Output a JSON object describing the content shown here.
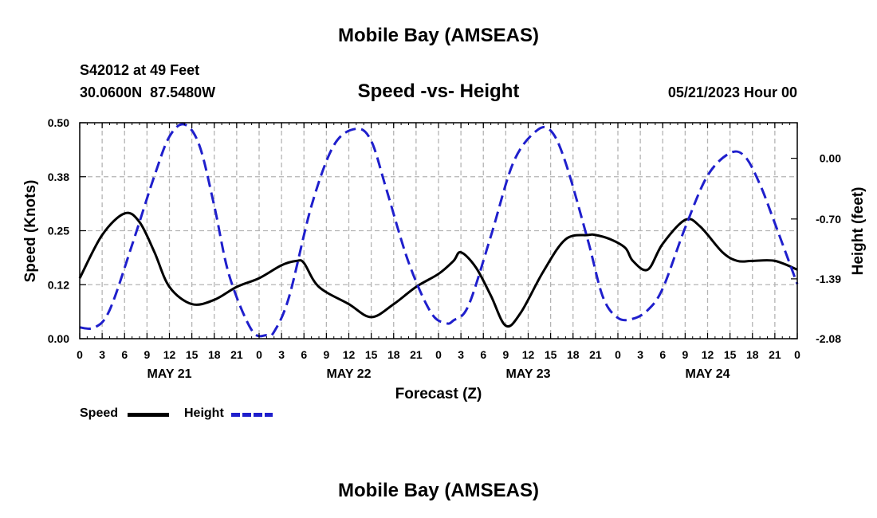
{
  "page": {
    "title": "Mobile Bay (AMSEAS)",
    "station": "S42012 at 49 Feet",
    "coords": "30.0600N  87.5480W",
    "datetime": "05/21/2023 Hour 00",
    "footer_title": "Mobile Bay (AMSEAS)"
  },
  "chart_data": {
    "type": "line",
    "title": "Speed -vs- Height",
    "xlabel": "Forecast (Z)",
    "ylabel_left": "Speed (Knots)",
    "ylabel_right": "Height (feet)",
    "x_unit": "hours from 05/21/2023 00Z",
    "xlim": [
      0,
      96
    ],
    "ylim_left": [
      0,
      0.5
    ],
    "ylim_right": [
      -2.08,
      0.41
    ],
    "grid": true,
    "yticks_left": [
      {
        "value": 0,
        "label": "0.00"
      },
      {
        "value": 0.125,
        "label": "0.12"
      },
      {
        "value": 0.25,
        "label": "0.25"
      },
      {
        "value": 0.375,
        "label": "0.38"
      },
      {
        "value": 0.5,
        "label": "0.50"
      }
    ],
    "yticks_right": [
      {
        "value": -2.08,
        "label": "-2.08"
      },
      {
        "value": -1.39,
        "label": "-1.39"
      },
      {
        "value": -0.7,
        "label": "-0.70"
      },
      {
        "value": 0.0,
        "label": "0.00"
      }
    ],
    "xticks": [
      {
        "x": 0,
        "label": "0"
      },
      {
        "x": 3,
        "label": "3"
      },
      {
        "x": 6,
        "label": "6"
      },
      {
        "x": 9,
        "label": "9"
      },
      {
        "x": 12,
        "label": "12"
      },
      {
        "x": 15,
        "label": "15"
      },
      {
        "x": 18,
        "label": "18"
      },
      {
        "x": 21,
        "label": "21"
      },
      {
        "x": 24,
        "label": "0"
      },
      {
        "x": 27,
        "label": "3"
      },
      {
        "x": 30,
        "label": "6"
      },
      {
        "x": 33,
        "label": "9"
      },
      {
        "x": 36,
        "label": "12"
      },
      {
        "x": 39,
        "label": "15"
      },
      {
        "x": 42,
        "label": "18"
      },
      {
        "x": 45,
        "label": "21"
      },
      {
        "x": 48,
        "label": "0"
      },
      {
        "x": 51,
        "label": "3"
      },
      {
        "x": 54,
        "label": "6"
      },
      {
        "x": 57,
        "label": "9"
      },
      {
        "x": 60,
        "label": "12"
      },
      {
        "x": 63,
        "label": "15"
      },
      {
        "x": 66,
        "label": "18"
      },
      {
        "x": 69,
        "label": "21"
      },
      {
        "x": 72,
        "label": "0"
      },
      {
        "x": 75,
        "label": "3"
      },
      {
        "x": 78,
        "label": "6"
      },
      {
        "x": 81,
        "label": "9"
      },
      {
        "x": 84,
        "label": "12"
      },
      {
        "x": 87,
        "label": "15"
      },
      {
        "x": 90,
        "label": "18"
      },
      {
        "x": 93,
        "label": "21"
      },
      {
        "x": 96,
        "label": "0"
      }
    ],
    "day_labels": [
      {
        "x": 12,
        "label": "MAY 21"
      },
      {
        "x": 36,
        "label": "MAY 22"
      },
      {
        "x": 60,
        "label": "MAY 23"
      },
      {
        "x": 84,
        "label": "MAY 24"
      }
    ],
    "series": [
      {
        "name": "Speed",
        "axis": "left",
        "color": "#000000",
        "dash": "solid",
        "x": [
          0,
          3,
          6,
          8,
          10,
          12,
          15,
          18,
          21,
          24,
          27,
          29,
          30,
          32,
          36,
          39,
          42,
          45,
          48,
          50,
          51,
          53,
          55,
          57,
          59,
          62,
          65,
          68,
          69,
          71,
          73,
          74,
          76,
          78,
          81,
          83,
          86,
          88,
          90,
          93,
          96
        ],
        "y": [
          0.14,
          0.24,
          0.29,
          0.27,
          0.2,
          0.12,
          0.08,
          0.09,
          0.12,
          0.14,
          0.17,
          0.18,
          0.175,
          0.12,
          0.08,
          0.05,
          0.08,
          0.12,
          0.15,
          0.18,
          0.2,
          0.165,
          0.1,
          0.03,
          0.06,
          0.155,
          0.23,
          0.24,
          0.24,
          0.23,
          0.21,
          0.18,
          0.16,
          0.22,
          0.275,
          0.26,
          0.2,
          0.18,
          0.18,
          0.18,
          0.16
        ]
      },
      {
        "name": "Height",
        "axis": "right",
        "color": "#1f1fcc",
        "dash": "dashed",
        "x": [
          0,
          2,
          4,
          7,
          10,
          12,
          14,
          16,
          18,
          20,
          23,
          25,
          26,
          28,
          31,
          34,
          37,
          39,
          41,
          44,
          47,
          49,
          50,
          52,
          55,
          58,
          61,
          63,
          65,
          68,
          70,
          72,
          74,
          76,
          78,
          81,
          84,
          87,
          89,
          91,
          93,
          96
        ],
        "y": [
          -1.95,
          -1.95,
          -1.75,
          -1.0,
          -0.2,
          0.25,
          0.39,
          0.15,
          -0.55,
          -1.35,
          -1.98,
          -2.04,
          -2.0,
          -1.6,
          -0.55,
          0.15,
          0.34,
          0.2,
          -0.35,
          -1.2,
          -1.78,
          -1.9,
          -1.87,
          -1.7,
          -0.9,
          -0.05,
          0.31,
          0.32,
          -0.05,
          -0.95,
          -1.6,
          -1.84,
          -1.85,
          -1.75,
          -1.5,
          -0.8,
          -0.2,
          0.06,
          0.02,
          -0.3,
          -0.75,
          -1.45
        ]
      }
    ],
    "legend": [
      {
        "label": "Speed",
        "color": "#000000",
        "dash": "solid"
      },
      {
        "label": "Height",
        "color": "#1f1fcc",
        "dash": "dashed"
      }
    ],
    "legend_position": "bottom-left"
  }
}
